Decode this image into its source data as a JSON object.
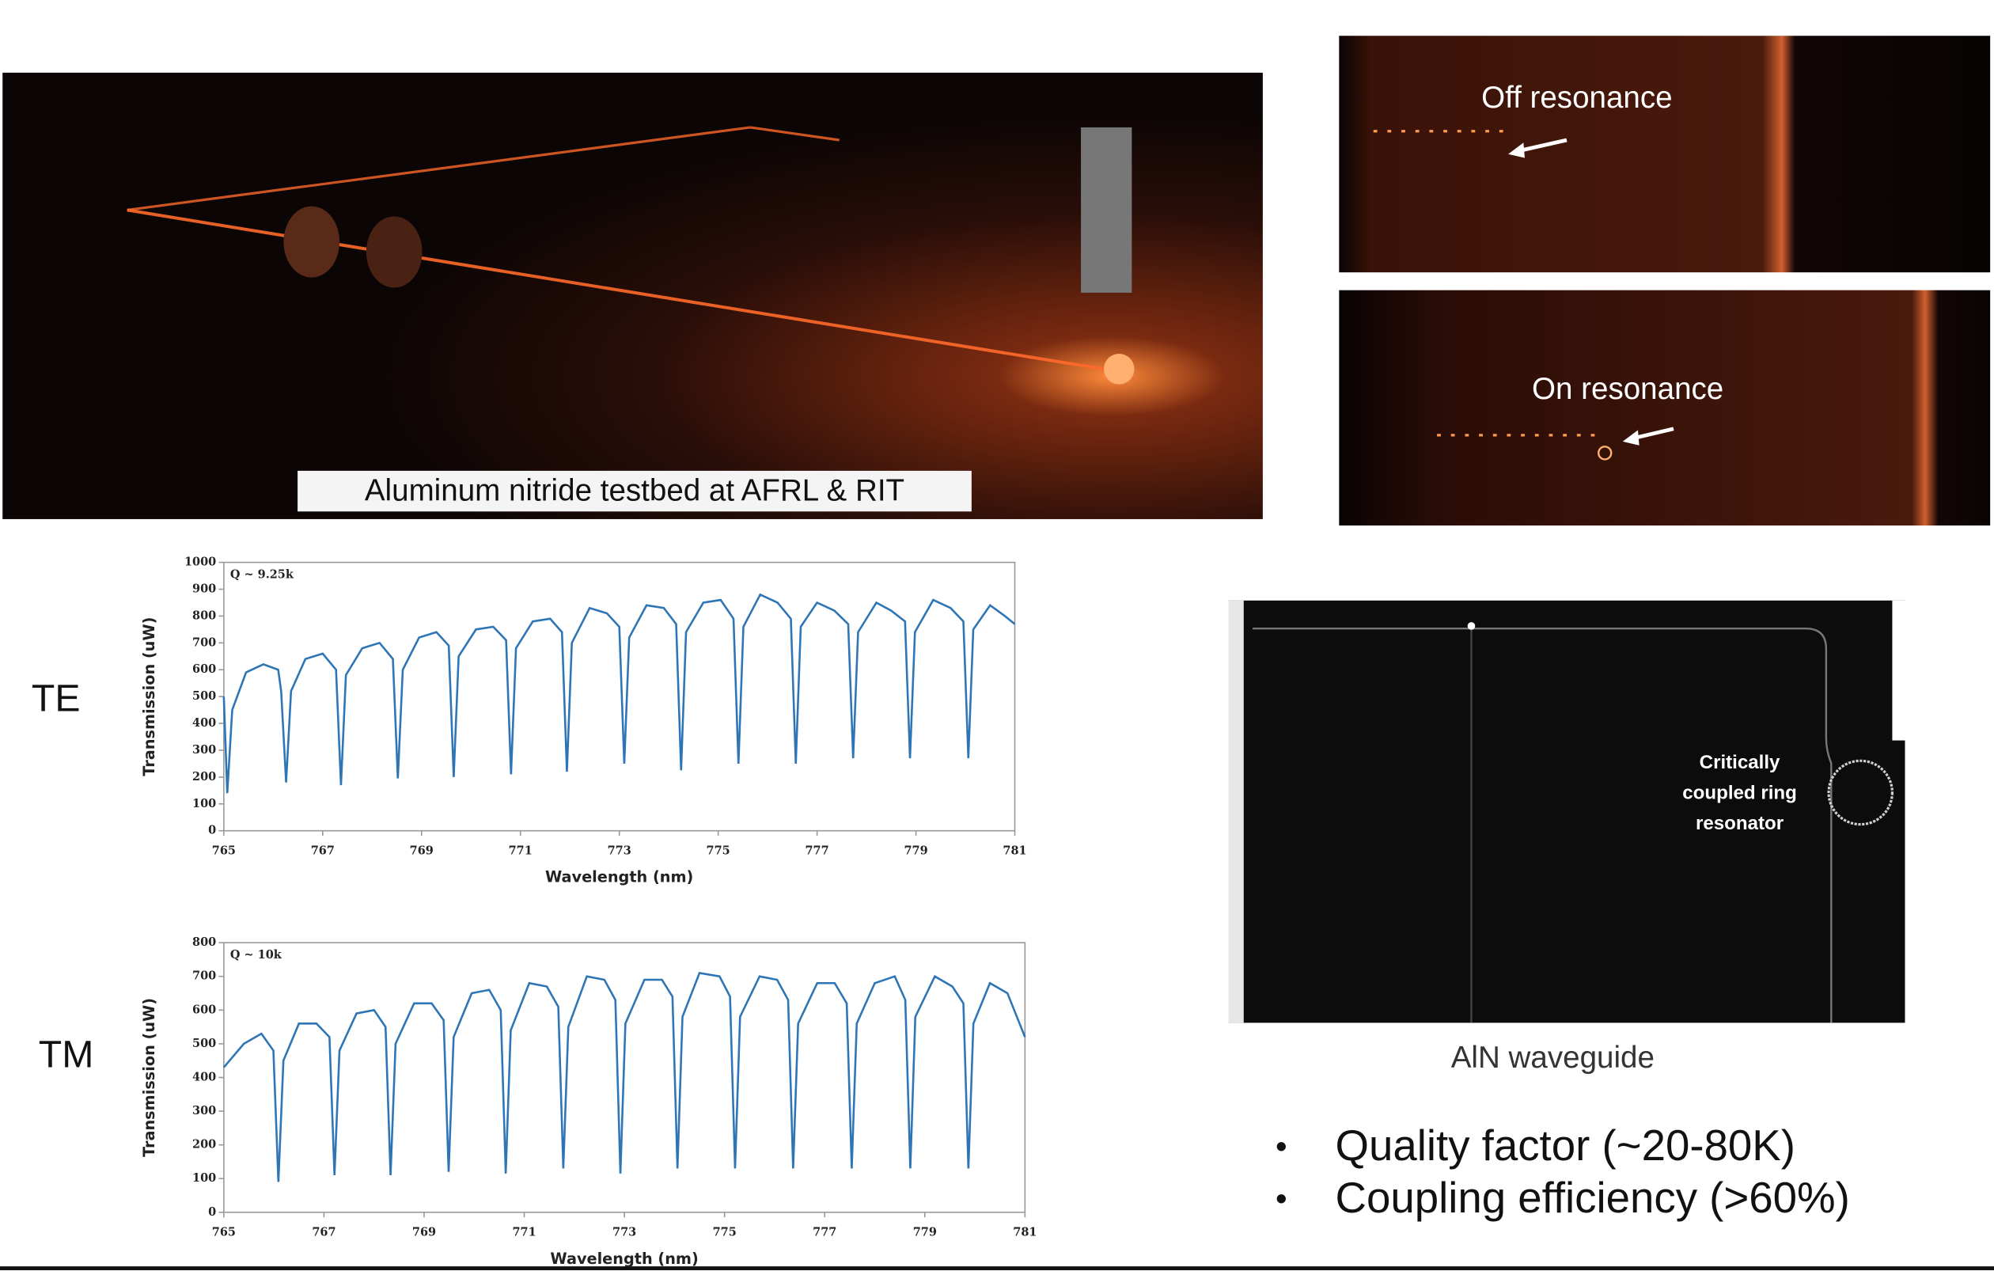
{
  "photo_caption": "Aluminum nitride testbed at AFRL & RIT",
  "off_label": "Off resonance",
  "on_label": "On resonance",
  "ring_label": [
    "Critically",
    "coupled ring",
    "resonator"
  ],
  "waveguide_caption": "AlN waveguide",
  "bullets": [
    "Quality factor (~20-80K)",
    "Coupling efficiency (>60%)"
  ],
  "chart_data": [
    {
      "type": "line",
      "mode_label": "TE",
      "annotation": "Q ~ 9.25k",
      "x_label": "Wavelength (nm)",
      "y_label": "Transmission (uW)",
      "color": "#2e75b6",
      "xlim": [
        765,
        781
      ],
      "xticks": [
        765,
        767,
        769,
        771,
        773,
        775,
        777,
        779,
        781
      ],
      "ylim": [
        0,
        1000
      ],
      "yticks": [
        0,
        100,
        200,
        300,
        400,
        500,
        600,
        700,
        800,
        900,
        1000
      ],
      "x": [
        765.0,
        765.07,
        765.17,
        765.45,
        765.8,
        766.1,
        766.16,
        766.26,
        766.36,
        766.65,
        767.0,
        767.27,
        767.37,
        767.47,
        767.8,
        768.15,
        768.42,
        768.52,
        768.62,
        768.95,
        769.3,
        769.55,
        769.65,
        769.75,
        770.1,
        770.45,
        770.71,
        770.81,
        770.91,
        771.25,
        771.6,
        771.84,
        771.94,
        772.04,
        772.4,
        772.75,
        773.0,
        773.1,
        773.2,
        773.55,
        773.9,
        774.15,
        774.25,
        774.35,
        774.7,
        775.05,
        775.31,
        775.41,
        775.51,
        775.85,
        776.2,
        776.47,
        776.57,
        776.67,
        777.0,
        777.35,
        777.63,
        777.73,
        777.83,
        778.2,
        778.5,
        778.78,
        778.88,
        778.98,
        779.35,
        779.7,
        779.96,
        780.06,
        780.16,
        780.5,
        780.8,
        781.0
      ],
      "values": [
        500,
        140,
        450,
        590,
        620,
        600,
        520,
        180,
        520,
        640,
        660,
        600,
        170,
        580,
        680,
        700,
        640,
        195,
        600,
        720,
        740,
        690,
        200,
        650,
        750,
        760,
        710,
        210,
        680,
        780,
        790,
        740,
        220,
        700,
        830,
        810,
        760,
        250,
        720,
        840,
        830,
        770,
        225,
        740,
        850,
        860,
        790,
        250,
        760,
        880,
        850,
        790,
        250,
        760,
        850,
        820,
        770,
        270,
        740,
        850,
        820,
        780,
        270,
        740,
        860,
        830,
        780,
        270,
        750,
        840,
        800,
        770
      ]
    },
    {
      "type": "line",
      "mode_label": "TM",
      "annotation": "Q ~ 10k",
      "x_label": "Wavelength (nm)",
      "y_label": "Transmission (uW)",
      "color": "#2e75b6",
      "xlim": [
        765,
        781
      ],
      "xticks": [
        765,
        767,
        769,
        771,
        773,
        775,
        777,
        779,
        781
      ],
      "ylim": [
        0,
        800
      ],
      "yticks": [
        0,
        100,
        200,
        300,
        400,
        500,
        600,
        700,
        800
      ],
      "x": [
        765.0,
        765.4,
        765.75,
        765.99,
        766.09,
        766.19,
        766.5,
        766.85,
        767.11,
        767.21,
        767.31,
        767.65,
        768.0,
        768.23,
        768.33,
        768.43,
        768.8,
        769.15,
        769.39,
        769.49,
        769.59,
        769.95,
        770.3,
        770.53,
        770.63,
        770.73,
        771.1,
        771.45,
        771.68,
        771.78,
        771.88,
        772.25,
        772.6,
        772.82,
        772.92,
        773.02,
        773.4,
        773.75,
        773.96,
        774.06,
        774.16,
        774.5,
        774.9,
        775.11,
        775.21,
        775.31,
        775.7,
        776.05,
        776.27,
        776.37,
        776.47,
        776.85,
        777.2,
        777.44,
        777.54,
        777.64,
        778.0,
        778.4,
        778.61,
        778.71,
        778.81,
        779.2,
        779.55,
        779.77,
        779.87,
        779.97,
        780.3,
        780.65,
        781.0
      ],
      "values": [
        430,
        500,
        530,
        480,
        90,
        450,
        560,
        560,
        520,
        110,
        480,
        590,
        600,
        550,
        110,
        500,
        620,
        620,
        570,
        120,
        520,
        650,
        660,
        600,
        115,
        540,
        680,
        670,
        610,
        130,
        550,
        700,
        690,
        630,
        115,
        560,
        690,
        690,
        640,
        130,
        580,
        710,
        700,
        640,
        130,
        580,
        700,
        690,
        630,
        130,
        560,
        680,
        680,
        620,
        130,
        560,
        680,
        700,
        630,
        130,
        580,
        700,
        670,
        620,
        130,
        560,
        680,
        650,
        520
      ]
    }
  ]
}
